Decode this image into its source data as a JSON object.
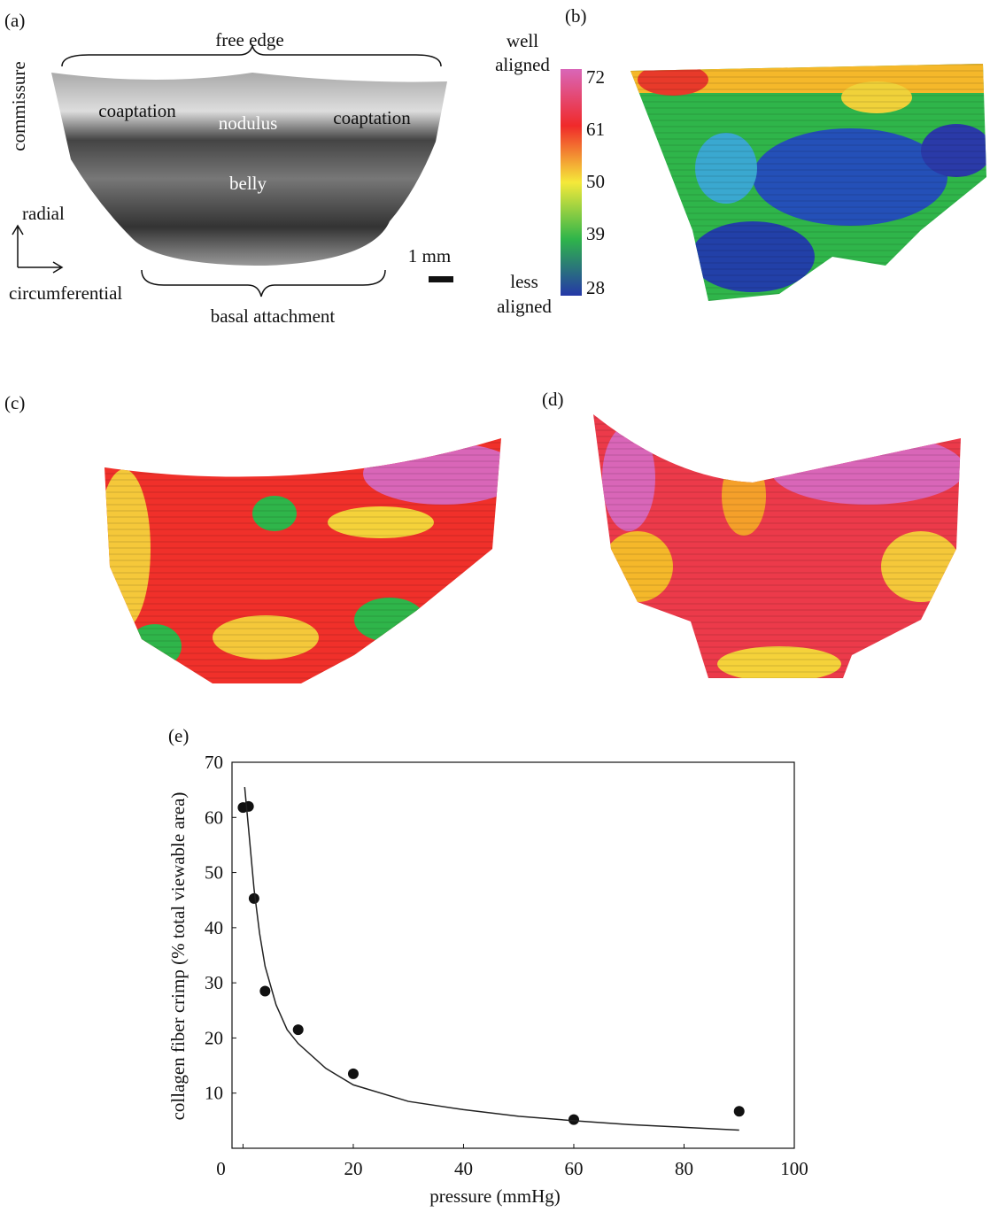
{
  "panels": {
    "a": {
      "label": "(a)",
      "free_edge": "free edge",
      "commissure": "commissure",
      "coaptation_left": "coaptation",
      "nodulus": "nodulus",
      "coaptation_right": "coaptation",
      "belly": "belly",
      "radial": "radial",
      "circumferential": "circumferential",
      "basal_attachment": "basal attachment",
      "scale": "1 mm"
    },
    "b": {
      "label": "(b)",
      "top_label": [
        "well",
        "aligned"
      ],
      "bottom_label": [
        "less",
        "aligned"
      ],
      "colorbar_ticks": [
        72,
        61,
        50,
        39,
        28
      ]
    },
    "c": {
      "label": "(c)"
    },
    "d": {
      "label": "(d)"
    },
    "e": {
      "label": "(e)"
    }
  },
  "chart_data": {
    "type": "scatter",
    "xlabel": "pressure (mmHg)",
    "ylabel": "collagen fiber crimp (% total viewable area)",
    "xlim": [
      -2,
      100
    ],
    "ylim": [
      0,
      70
    ],
    "xticks": [
      0,
      20,
      40,
      60,
      80,
      100
    ],
    "yticks": [
      10,
      20,
      30,
      40,
      50,
      60,
      70
    ],
    "series": [
      {
        "type": "scatter",
        "color": "#111111",
        "x": [
          0,
          1,
          2,
          4,
          10,
          20,
          60,
          90
        ],
        "values": [
          61.8,
          62,
          45.3,
          28.5,
          21.5,
          13.5,
          5.2,
          6.7
        ]
      },
      {
        "type": "line",
        "color": "#222222",
        "x": [
          0.3,
          1,
          2,
          3,
          4,
          6,
          8,
          10,
          15,
          20,
          30,
          40,
          50,
          60,
          70,
          80,
          90
        ],
        "values": [
          65.5,
          58,
          47,
          39,
          33,
          26,
          21.5,
          19,
          14.5,
          11.5,
          8.5,
          7,
          5.8,
          5,
          4.3,
          3.8,
          3.3
        ]
      }
    ]
  }
}
